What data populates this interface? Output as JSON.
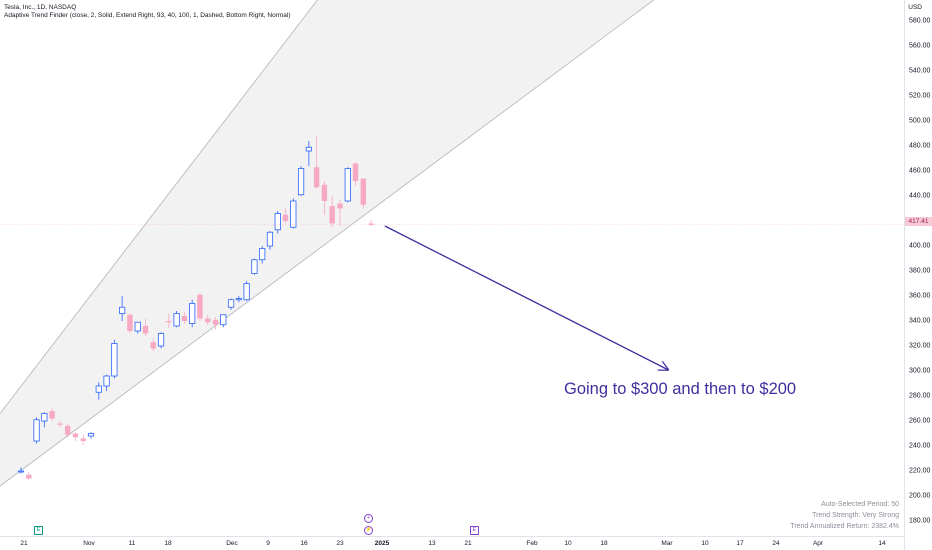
{
  "header": {
    "title": "Tesla, Inc., 1D, NASDAQ",
    "indicator": "Adaptive Trend Finder (close, 2, Solid, Extend Right, 93, 40, 100, 1, Dashed, Bottom Right, Normal)",
    "currency": "USD"
  },
  "annotation": "Going to $300 and then to $200",
  "last_price": "417.41",
  "stats": {
    "period": "Auto-Selected Period: 50",
    "strength": "Trend Strength: Very Strong",
    "annualized": "Trend Annualized Return: 2382.4%"
  },
  "events": {
    "earnings_1": "E",
    "earnings_2": "E",
    "dividend_1": "+",
    "dividend_2": "⚡"
  },
  "colors": {
    "up": "#2962ff",
    "down": "#f7a9c1",
    "channel_fill": "#f2f2f2",
    "channel_line": "#b0b3ba",
    "arrow": "#3f2f9e",
    "earnings": "#089981",
    "event_purple": "#7e3fd1"
  },
  "chart_data": {
    "type": "candlestick",
    "y_axis": {
      "ticks": [
        "180.00",
        "200.00",
        "220.00",
        "240.00",
        "260.00",
        "280.00",
        "300.00",
        "320.00",
        "340.00",
        "360.00",
        "380.00",
        "400.00",
        "420.00",
        "440.00",
        "460.00",
        "480.00",
        "500.00",
        "520.00",
        "540.00",
        "560.00",
        "580.00"
      ],
      "range": [
        170,
        590
      ]
    },
    "x_axis": {
      "ticks": [
        "21",
        "Nov",
        "11",
        "18",
        "Dec",
        "9",
        "16",
        "23",
        "2025",
        "13",
        "21",
        "Feb",
        "10",
        "18",
        "Mar",
        "10",
        "17",
        "24",
        "Apr",
        "14"
      ],
      "bold_tick": "2025"
    },
    "candles": [
      {
        "o": 220,
        "h": 223,
        "l": 218,
        "c": 220
      },
      {
        "o": 217,
        "h": 219,
        "l": 213,
        "c": 214
      },
      {
        "o": 244,
        "h": 263,
        "l": 242,
        "c": 261
      },
      {
        "o": 260,
        "h": 267,
        "l": 255,
        "c": 266
      },
      {
        "o": 268,
        "h": 270,
        "l": 260,
        "c": 262
      },
      {
        "o": 258,
        "h": 260,
        "l": 255,
        "c": 257
      },
      {
        "o": 256,
        "h": 258,
        "l": 247,
        "c": 249
      },
      {
        "o": 250,
        "h": 251,
        "l": 244,
        "c": 247
      },
      {
        "o": 246,
        "h": 249,
        "l": 241,
        "c": 244
      },
      {
        "o": 248,
        "h": 251,
        "l": 246,
        "c": 250
      },
      {
        "o": 283,
        "h": 291,
        "l": 277,
        "c": 288
      },
      {
        "o": 288,
        "h": 297,
        "l": 284,
        "c": 296
      },
      {
        "o": 296,
        "h": 325,
        "l": 294,
        "c": 322
      },
      {
        "o": 346,
        "h": 360,
        "l": 340,
        "c": 351
      },
      {
        "o": 345,
        "h": 346,
        "l": 330,
        "c": 332
      },
      {
        "o": 332,
        "h": 339,
        "l": 330,
        "c": 339
      },
      {
        "o": 336,
        "h": 342,
        "l": 328,
        "c": 330
      },
      {
        "o": 323,
        "h": 326,
        "l": 316,
        "c": 318
      },
      {
        "o": 320,
        "h": 331,
        "l": 318,
        "c": 330
      },
      {
        "o": 340,
        "h": 346,
        "l": 334,
        "c": 339
      },
      {
        "o": 336,
        "h": 348,
        "l": 335,
        "c": 346
      },
      {
        "o": 344,
        "h": 347,
        "l": 338,
        "c": 340
      },
      {
        "o": 338,
        "h": 357,
        "l": 335,
        "c": 354
      },
      {
        "o": 361,
        "h": 362,
        "l": 340,
        "c": 342
      },
      {
        "o": 342,
        "h": 345,
        "l": 337,
        "c": 339
      },
      {
        "o": 341,
        "h": 343,
        "l": 333,
        "c": 337
      },
      {
        "o": 337,
        "h": 345,
        "l": 335,
        "c": 345
      },
      {
        "o": 351,
        "h": 358,
        "l": 349,
        "c": 357
      },
      {
        "o": 357,
        "h": 360,
        "l": 355,
        "c": 358
      },
      {
        "o": 357,
        "h": 372,
        "l": 356,
        "c": 370
      },
      {
        "o": 378,
        "h": 390,
        "l": 377,
        "c": 389
      },
      {
        "o": 389,
        "h": 400,
        "l": 386,
        "c": 398
      },
      {
        "o": 400,
        "h": 412,
        "l": 397,
        "c": 411
      },
      {
        "o": 413,
        "h": 428,
        "l": 410,
        "c": 426
      },
      {
        "o": 425,
        "h": 430,
        "l": 418,
        "c": 420
      },
      {
        "o": 415,
        "h": 438,
        "l": 414,
        "c": 436
      },
      {
        "o": 441,
        "h": 464,
        "l": 440,
        "c": 462
      },
      {
        "o": 476,
        "h": 484,
        "l": 464,
        "c": 479
      },
      {
        "o": 463,
        "h": 488,
        "l": 446,
        "c": 447
      },
      {
        "o": 449,
        "h": 452,
        "l": 425,
        "c": 436
      },
      {
        "o": 432,
        "h": 440,
        "l": 415,
        "c": 418
      },
      {
        "o": 434,
        "h": 437,
        "l": 416,
        "c": 430
      },
      {
        "o": 436,
        "h": 463,
        "l": 435,
        "c": 462
      },
      {
        "o": 466,
        "h": 467,
        "l": 448,
        "c": 452
      },
      {
        "o": 454,
        "h": 454,
        "l": 430,
        "c": 433
      },
      {
        "o": 418,
        "h": 421,
        "l": 416,
        "c": 417
      }
    ],
    "channel": {
      "upper": [
        {
          "date_index": 0,
          "price": 266
        },
        {
          "date_index": 45,
          "price": 634
        }
      ],
      "lower": [
        {
          "date_index": 0,
          "price": 208
        },
        {
          "date_index": 45,
          "price": 418
        }
      ]
    },
    "arrow": {
      "from": {
        "date_index": 46,
        "price": 416
      },
      "to": {
        "date_index": 90,
        "price": 301
      }
    }
  }
}
